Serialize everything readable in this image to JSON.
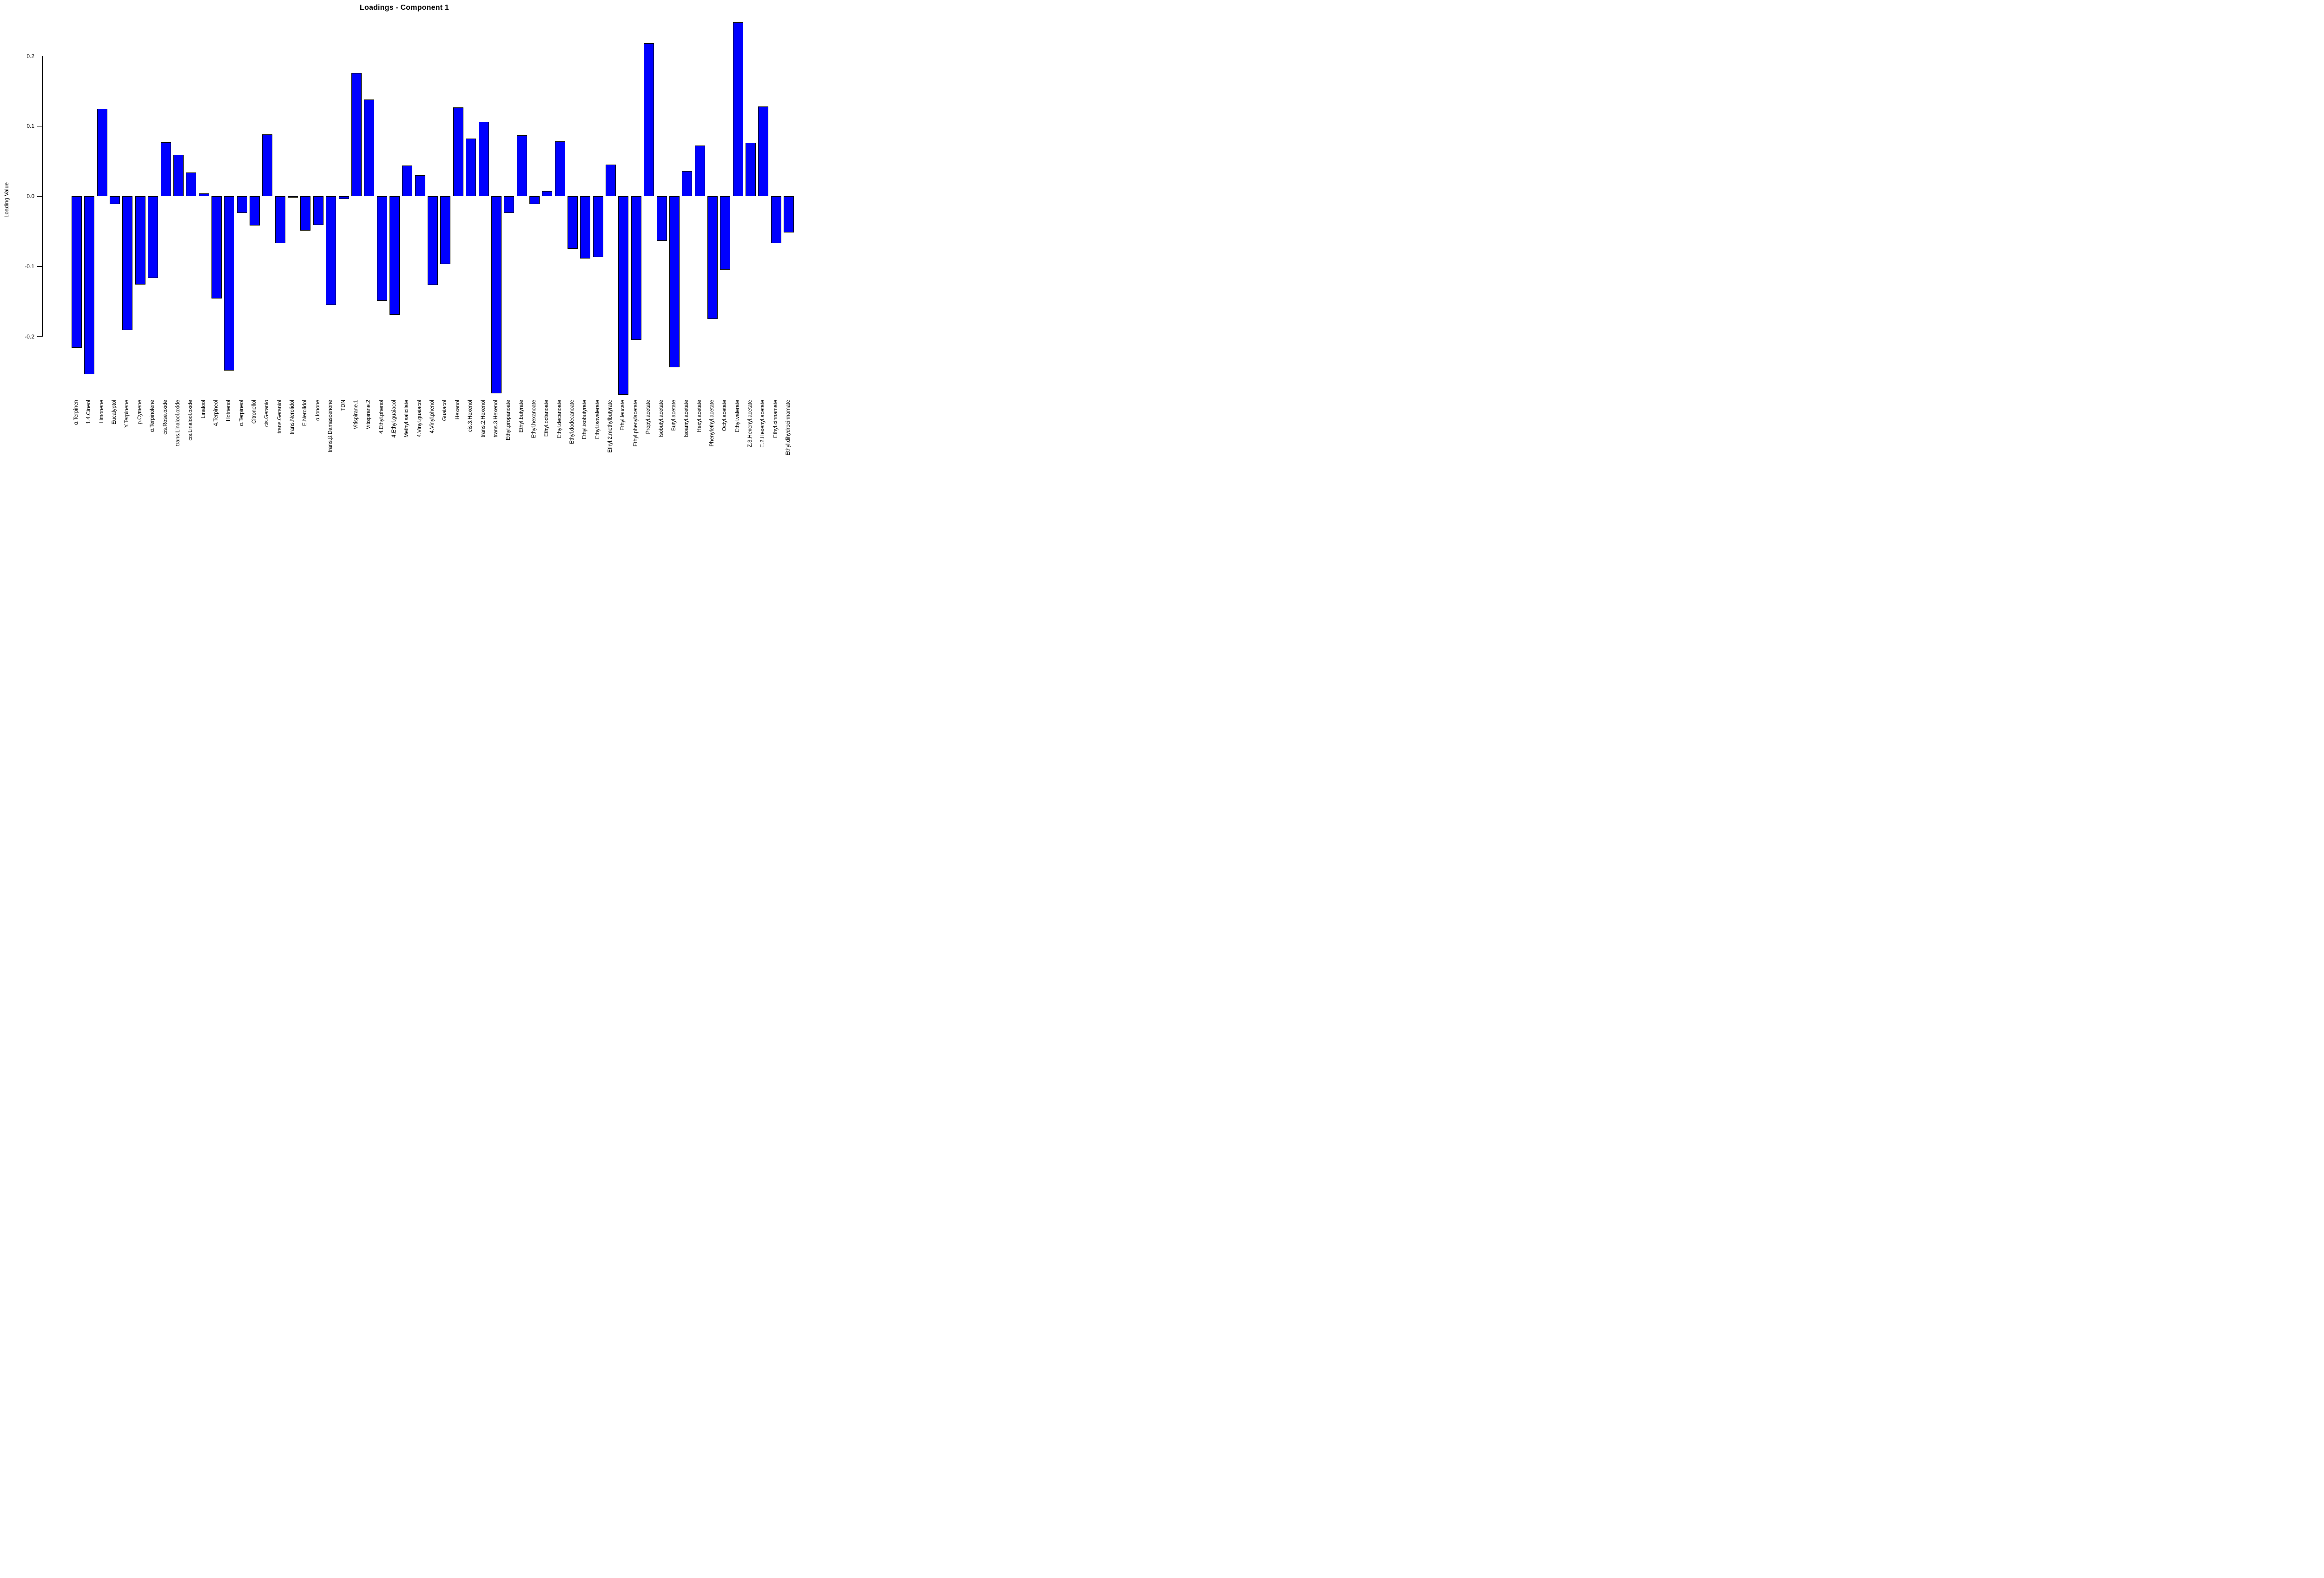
{
  "title": "Loadings - Component 1",
  "chart_data": {
    "type": "bar",
    "title": "Loadings - Component 1",
    "xlabel": "",
    "ylabel": "Loading Value",
    "bar_color": "#0000FF",
    "bar_border_color": "#000000",
    "background_color": "#FFFFFF",
    "grid": false,
    "legend_position": "none",
    "ylim": [
      -0.3,
      0.26
    ],
    "yticks": [
      0.2,
      0.1,
      0.0,
      -0.1,
      -0.2
    ],
    "ytick_labels": [
      "0.2",
      "0.1",
      "0.0",
      "-0.1",
      "-0.2"
    ],
    "categories": [
      "α.Terpinen",
      "1.4.Cineol",
      "Limonene",
      "Eucalyptol",
      "Y.Terpinene",
      "p.Cymene",
      "α.Terpinolene",
      "cis.Rose.oxide",
      "trans.Linalool.oxide",
      "cis.Linalool.oxide",
      "Linalool",
      "4.Terpineol",
      "Hotrienol",
      "α.Terpineol",
      "Citronellol",
      "cis.Geranio",
      "trans.Geraniol",
      "trans.Nerolidol",
      "E.Nerolidol",
      "α.Ionone",
      "trans.β.Damascenone",
      "TDN",
      "Vitispirane.1",
      "Vitispirane.2",
      "4.Ethyl.phenol",
      "4.Ethyl.guaiacol",
      "Methyl.salicilate",
      "4.Vinyl.guaiacol",
      "4.Vinyl.phenol",
      "Guaiacol",
      "Hexanol",
      "cis.3.Hexenol",
      "trans.2.Hexenol",
      "trans.3.Hexenol",
      "Ethyl.propanoate",
      "Ethyl.butyrate",
      "Ethyl.hexanoate",
      "Ethyl.octanoate",
      "Ethyl.decanoate",
      "Ethyl.dodecanoate",
      "Ethyl.isobutyrate",
      "Ethyl.isovalerate",
      "Ethyl.2.methylbutyrate",
      "Ethyl.leucate",
      "Ethyl.phenylacetate",
      "Propyl.acetate",
      "Isobutyl.acetate",
      "Butyl.acetate",
      "Isoamyl.acetate",
      "Hexyl.acetate",
      "Phenylethyl.acetate",
      "Octyl.acetate",
      "Ethyl.valerate",
      "Z.3.Hexenyl.acetate",
      "E.2.Hexenyl.acetate",
      "Ethyl.cinnamate",
      "Ethyl.dihydrocinnamate"
    ],
    "values": [
      -0.216,
      -0.254,
      0.125,
      -0.011,
      -0.191,
      -0.126,
      -0.117,
      0.077,
      0.059,
      0.034,
      0.004,
      -0.146,
      -0.249,
      -0.024,
      -0.042,
      0.088,
      -0.067,
      -0.002,
      -0.049,
      -0.041,
      -0.155,
      -0.004,
      0.176,
      0.138,
      -0.149,
      -0.169,
      0.044,
      0.03,
      -0.127,
      -0.097,
      0.127,
      0.082,
      0.106,
      -0.281,
      -0.024,
      0.087,
      -0.011,
      0.007,
      0.078,
      -0.075,
      -0.089,
      -0.087,
      0.045,
      -0.283,
      -0.205,
      0.218,
      -0.064,
      -0.244,
      0.036,
      0.072,
      -0.175,
      -0.105,
      0.248,
      0.076,
      0.128,
      -0.067,
      -0.052
    ]
  }
}
